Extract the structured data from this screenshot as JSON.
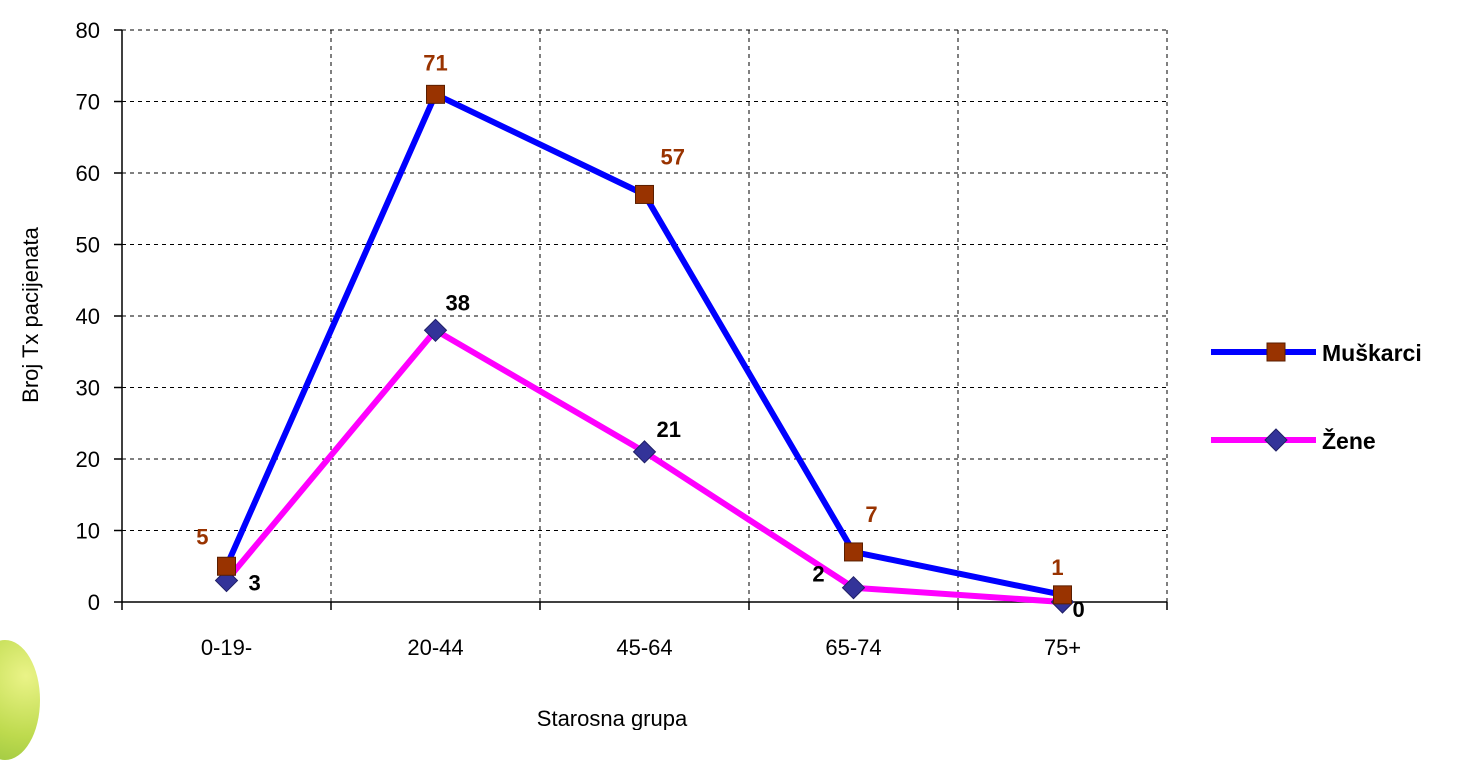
{
  "chart_data": {
    "type": "line",
    "categories": [
      "0-19-",
      "20-44",
      "45-64",
      "65-74",
      "75+"
    ],
    "series": [
      {
        "name": "Muškarci",
        "values": [
          5,
          71,
          57,
          7,
          1
        ],
        "line_color": "#0000ff",
        "marker_color": "#993300",
        "label_color": "#993300",
        "marker": "square"
      },
      {
        "name": "Žene",
        "values": [
          3,
          38,
          21,
          2,
          0
        ],
        "line_color": "#ff00ff",
        "marker_color": "#333399",
        "label_color": "#000000",
        "marker": "diamond"
      }
    ],
    "xlabel": "Starosna grupa",
    "ylabel": "Broj Tx pacijenata",
    "ylim": [
      0,
      80
    ],
    "yticks": [
      0,
      10,
      20,
      30,
      40,
      50,
      60,
      70,
      80
    ],
    "grid": true,
    "legend_position": "right"
  }
}
